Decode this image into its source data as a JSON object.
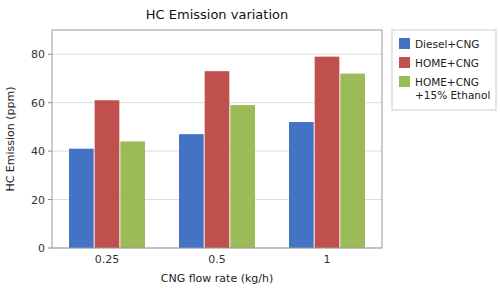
{
  "chart_data": {
    "type": "bar",
    "title": "HC Emission variation",
    "x_label": "CNG flow rate (kg/h)",
    "y_label": "HC Emission (ppm)",
    "categories": [
      "0.25",
      "0.5",
      "1"
    ],
    "series": [
      {
        "name": "Diesel+CNG",
        "color": "#4472C4",
        "values": [
          41,
          47,
          52
        ]
      },
      {
        "name": "HOME+CNG",
        "color": "#C0504D",
        "values": [
          61,
          73,
          79
        ]
      },
      {
        "name": "HOME+CNG\n+15% Ethanol",
        "color": "#9BBB59",
        "values": [
          44,
          59,
          72
        ]
      }
    ],
    "ylim": [
      0,
      90
    ],
    "yticks": [
      0,
      20,
      40,
      60,
      80
    ],
    "grid": true,
    "legend": "upper right"
  }
}
